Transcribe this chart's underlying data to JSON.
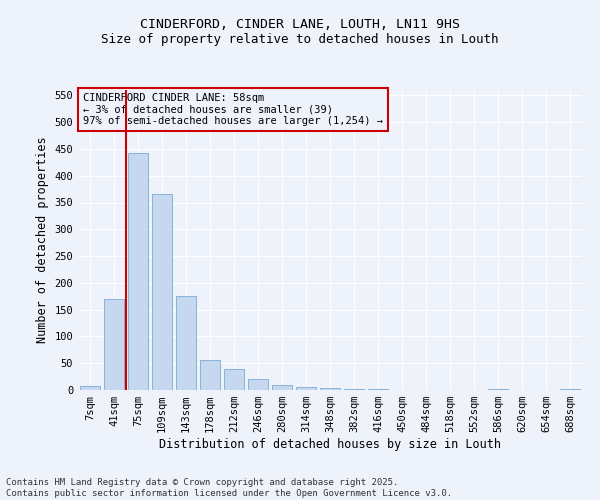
{
  "title1": "CINDERFORD, CINDER LANE, LOUTH, LN11 9HS",
  "title2": "Size of property relative to detached houses in Louth",
  "xlabel": "Distribution of detached houses by size in Louth",
  "ylabel": "Number of detached properties",
  "categories": [
    "7sqm",
    "41sqm",
    "75sqm",
    "109sqm",
    "143sqm",
    "178sqm",
    "212sqm",
    "246sqm",
    "280sqm",
    "314sqm",
    "348sqm",
    "382sqm",
    "416sqm",
    "450sqm",
    "484sqm",
    "518sqm",
    "552sqm",
    "586sqm",
    "620sqm",
    "654sqm",
    "688sqm"
  ],
  "values": [
    7,
    170,
    443,
    365,
    176,
    56,
    40,
    20,
    10,
    5,
    3,
    1,
    1,
    0,
    0,
    0,
    0,
    1,
    0,
    0,
    1
  ],
  "bar_color": "#c5d8f0",
  "bar_edge_color": "#7aaad4",
  "vline_x": 1.5,
  "vline_color": "#cc0000",
  "annotation_text": "CINDERFORD CINDER LANE: 58sqm\n← 3% of detached houses are smaller (39)\n97% of semi-detached houses are larger (1,254) →",
  "annotation_box_color": "#cc0000",
  "ylim": [
    0,
    560
  ],
  "yticks": [
    0,
    50,
    100,
    150,
    200,
    250,
    300,
    350,
    400,
    450,
    500,
    550
  ],
  "bg_color": "#eef2fb",
  "grid_color": "#ffffff",
  "footer": "Contains HM Land Registry data © Crown copyright and database right 2025.\nContains public sector information licensed under the Open Government Licence v3.0.",
  "title_fontsize": 9.5,
  "title2_fontsize": 9,
  "axis_label_fontsize": 8.5,
  "tick_fontsize": 7.5,
  "footer_fontsize": 6.5,
  "annot_fontsize": 7.5
}
